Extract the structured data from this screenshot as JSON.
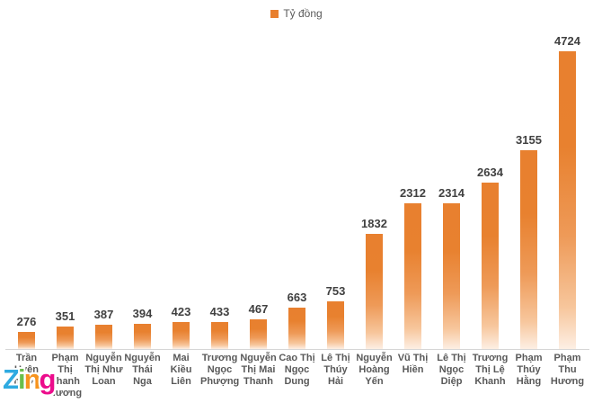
{
  "chart_data": {
    "type": "bar",
    "title": "",
    "xlabel": "",
    "ylabel": "",
    "legend": {
      "label": "Tỷ đồng",
      "position": "top-center",
      "swatch_color": "#e8802f"
    },
    "bar_color_top": "#e8802f",
    "bar_color_bottom": "#fdefe4",
    "grid": false,
    "ylim": [
      0,
      4724
    ],
    "categories": [
      "Trần Uyên Phương",
      "Phạm Thị Thanh Hương",
      "Nguyễn Thị Như Loan",
      "Nguyễn Thái Nga",
      "Mai Kiều Liên",
      "Trương Ngọc Phượng",
      "Nguyễn Thị Mai Thanh",
      "Cao Thị Ngọc Dung",
      "Lê Thị Thúy Hải",
      "Nguyễn Hoàng Yến",
      "Vũ Thị Hiền",
      "Lê Thị Ngọc Diệp",
      "Trương Thị Lệ Khanh",
      "Phạm Thúy Hằng",
      "Phạm Thu Hương"
    ],
    "values": [
      276,
      351,
      387,
      394,
      423,
      433,
      467,
      663,
      753,
      1832,
      2312,
      2314,
      2634,
      3155,
      4724
    ]
  },
  "watermark": {
    "text": "Zing",
    "letters": [
      {
        "char": "Z",
        "color": "#2eaae1"
      },
      {
        "char": "i",
        "color": "#6abf4b"
      },
      {
        "char": "n",
        "color": "#f7941e"
      },
      {
        "char": "g",
        "color": "#ec0c8c"
      }
    ]
  }
}
